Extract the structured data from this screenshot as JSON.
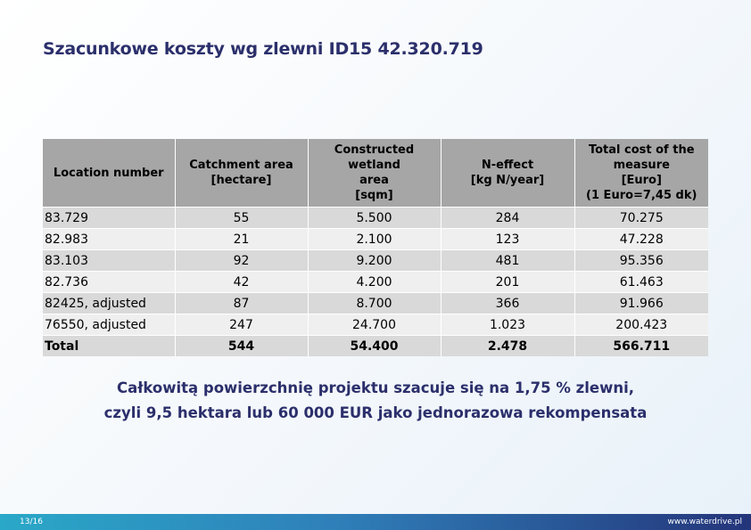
{
  "title": "Szacunkowe koszty wg zlewni ID15 42.320.719",
  "table": {
    "headers": [
      [
        "Location number"
      ],
      [
        "Catchment area",
        "[hectare]"
      ],
      [
        "Constructed wetland",
        "area",
        "[sqm]"
      ],
      [
        "N-effect",
        "[kg N/year]"
      ],
      [
        "Total cost of the",
        "measure",
        "[Euro]",
        "(1 Euro=7,45 dk)"
      ]
    ],
    "rows": [
      [
        "83.729",
        "55",
        "5.500",
        "284",
        "70.275"
      ],
      [
        "82.983",
        "21",
        "2.100",
        "123",
        "47.228"
      ],
      [
        "83.103",
        "92",
        "9.200",
        "481",
        "95.356"
      ],
      [
        "82.736",
        "42",
        "4.200",
        "201",
        "61.463"
      ],
      [
        "82425, adjusted",
        "87",
        "8.700",
        "366",
        "91.966"
      ],
      [
        "76550, adjusted",
        "247",
        "24.700",
        "1.023",
        "200.423"
      ]
    ],
    "total": [
      "Total",
      "544",
      "54.400",
      "2.478",
      "566.711"
    ]
  },
  "note": {
    "line1": "Całkowitą powierzchnię projektu szacuje się na 1,75 % zlewni,",
    "line2": "czyli 9,5 hektara lub 60 000 EUR jako jednorazowa rekompensata"
  },
  "footer": {
    "page": "13/16",
    "site": "www.waterdrive.pl"
  }
}
